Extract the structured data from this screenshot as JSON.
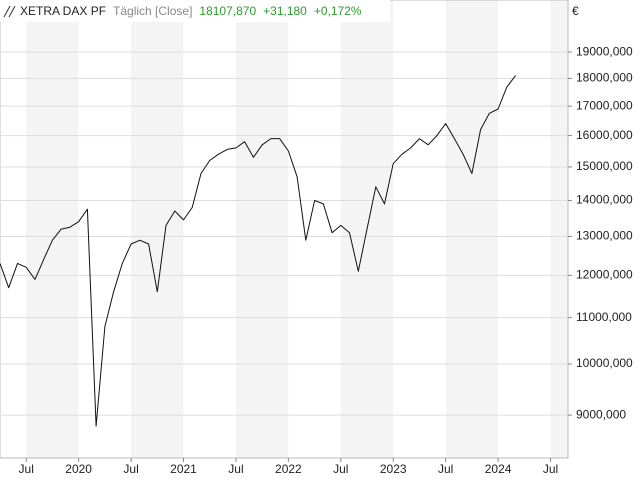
{
  "chart_data": {
    "type": "line",
    "header": {
      "period": "Täglich [Close]",
      "last": "18107,870",
      "change": "+31,180",
      "change_pct": "+0,172%"
    },
    "unit": "€",
    "x": [
      "2019-04",
      "2019-05",
      "2019-06",
      "2019-07",
      "2019-08",
      "2019-09",
      "2019-10",
      "2019-11",
      "2019-12",
      "2020-01",
      "2020-02",
      "2020-03",
      "2020-04",
      "2020-05",
      "2020-06",
      "2020-07",
      "2020-08",
      "2020-09",
      "2020-10",
      "2020-11",
      "2020-12",
      "2021-01",
      "2021-02",
      "2021-03",
      "2021-04",
      "2021-05",
      "2021-06",
      "2021-07",
      "2021-08",
      "2021-09",
      "2021-10",
      "2021-11",
      "2021-12",
      "2022-01",
      "2022-02",
      "2022-03",
      "2022-04",
      "2022-05",
      "2022-06",
      "2022-07",
      "2022-08",
      "2022-09",
      "2022-10",
      "2022-11",
      "2022-12",
      "2023-01",
      "2023-02",
      "2023-03",
      "2023-04",
      "2023-05",
      "2023-06",
      "2023-07",
      "2023-08",
      "2023-09",
      "2023-10",
      "2023-11",
      "2023-12",
      "2024-01",
      "2024-02",
      "2024-03"
    ],
    "series": [
      {
        "name": "XETRA DAX PF",
        "color": "#111111",
        "values": [
          12300,
          11700,
          12300,
          12200,
          11900,
          12400,
          12900,
          13200,
          13250,
          13400,
          13750,
          8800,
          10800,
          11600,
          12300,
          12800,
          12900,
          12800,
          11600,
          13300,
          13700,
          13450,
          13800,
          14800,
          15200,
          15400,
          15550,
          15600,
          15800,
          15300,
          15700,
          15900,
          15900,
          15500,
          14700,
          12900,
          14000,
          13900,
          13100,
          13300,
          13100,
          12100,
          13200,
          14400,
          13900,
          15100,
          15400,
          15600,
          15900,
          15700,
          16000,
          16400,
          15900,
          15400,
          14800,
          16200,
          16750,
          16900,
          17680,
          18108
        ]
      }
    ],
    "xlim": [
      "2019-04",
      "2024-09"
    ],
    "xticks": [
      {
        "value": "2019-07",
        "label": "Jul"
      },
      {
        "value": "2020-01",
        "label": "2020"
      },
      {
        "value": "2020-07",
        "label": "Jul"
      },
      {
        "value": "2021-01",
        "label": "2021"
      },
      {
        "value": "2021-07",
        "label": "Jul"
      },
      {
        "value": "2022-01",
        "label": "2022"
      },
      {
        "value": "2022-07",
        "label": "Jul"
      },
      {
        "value": "2023-01",
        "label": "2023"
      },
      {
        "value": "2023-07",
        "label": "Jul"
      },
      {
        "value": "2024-01",
        "label": "2024"
      },
      {
        "value": "2024-07",
        "label": "Jul"
      }
    ],
    "ylim": [
      8240,
      21150
    ],
    "yticks": [
      {
        "value": 9000,
        "label": "9000,000"
      },
      {
        "value": 10000,
        "label": "10000,000"
      },
      {
        "value": 11000,
        "label": "11000,000"
      },
      {
        "value": 12000,
        "label": "12000,000"
      },
      {
        "value": 13000,
        "label": "13000,000"
      },
      {
        "value": 14000,
        "label": "14000,000"
      },
      {
        "value": 15000,
        "label": "15000,000"
      },
      {
        "value": 16000,
        "label": "16000,000"
      },
      {
        "value": 17000,
        "label": "17000,000"
      },
      {
        "value": 18000,
        "label": "18000,000"
      },
      {
        "value": 19000,
        "label": "19000,000"
      }
    ],
    "log_scale": true,
    "grid": true,
    "up_color": "#2e9b2e"
  }
}
